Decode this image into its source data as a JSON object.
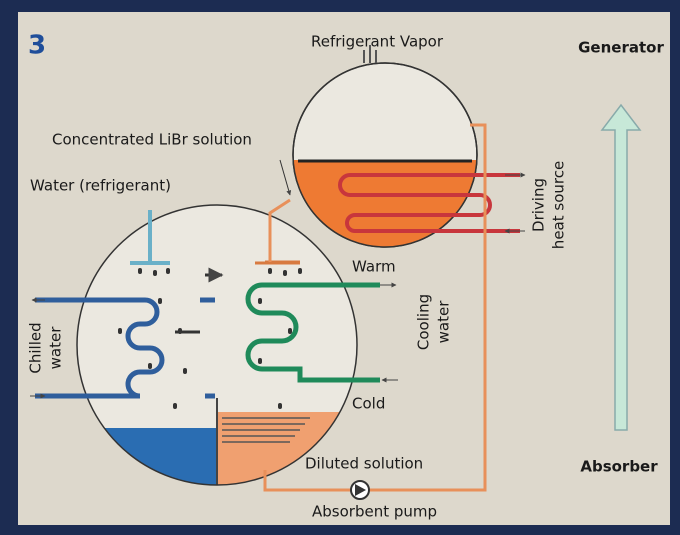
{
  "step": "3",
  "labels": {
    "refrigerant_vapor": "Refrigerant Vapor",
    "generator": "Generator",
    "concentrated": "Concentrated LiBr solution",
    "water_refrigerant": "Water (refrigerant)",
    "driving_heat_source": [
      "Driving",
      "heat source"
    ],
    "warm": "Warm",
    "cooling_water": [
      "Cooling",
      "water"
    ],
    "chilled_water": [
      "Chilled",
      "water"
    ],
    "cold": "Cold",
    "diluted_solution": "Diluted solution",
    "absorbent_pump": "Absorbent pump",
    "absorber": "Absorber"
  }
}
